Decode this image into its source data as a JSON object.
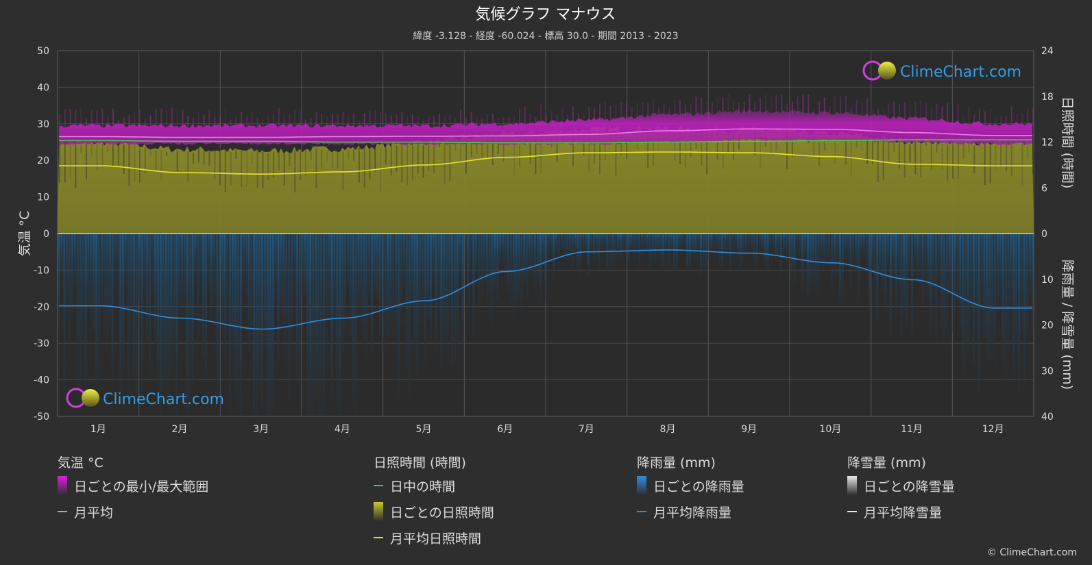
{
  "chart_data": {
    "type": "area",
    "title": "気候グラフ マナウス",
    "subtitle": "緯度 -3.128 - 経度 -60.024 - 標高 30.0 - 期間 2013 - 2023",
    "y_left_label": "気温 °C",
    "y_right_top_label": "日照時間 (時間)",
    "y_right_bottom_label": "降雨量 / 降雪量 (mm)",
    "y_left_range": [
      -50,
      50
    ],
    "y_left_ticks": [
      "50",
      "40",
      "30",
      "20",
      "10",
      "0",
      "-10",
      "-20",
      "-30",
      "-40",
      "-50"
    ],
    "y_right_top_range": [
      0,
      24
    ],
    "y_right_top_ticks": [
      "24",
      "18",
      "12",
      "6",
      "0"
    ],
    "y_right_bottom_range": [
      0,
      40
    ],
    "y_right_bottom_ticks": [
      "0",
      "10",
      "20",
      "30",
      "40"
    ],
    "months": [
      "1月",
      "2月",
      "3月",
      "4月",
      "5月",
      "6月",
      "7月",
      "8月",
      "9月",
      "10月",
      "11月",
      "12月"
    ],
    "grid": true,
    "series": [
      {
        "name": "日中の時間",
        "color": "#3fd43f",
        "values": [
          12.2,
          12.1,
          12.1,
          12.0,
          12.0,
          11.9,
          11.9,
          12.0,
          12.1,
          12.2,
          12.3,
          12.3
        ]
      },
      {
        "name": "月平均日照時間",
        "color": "#e6e62e",
        "values": [
          8.9,
          8.0,
          7.8,
          8.1,
          9.0,
          10.0,
          10.6,
          10.7,
          10.6,
          10.1,
          9.1,
          8.9
        ]
      },
      {
        "name": "月平均",
        "color": "#f07af0",
        "values": [
          26.5,
          26.3,
          26.3,
          26.5,
          26.6,
          26.7,
          27.1,
          28.1,
          28.6,
          28.5,
          27.6,
          26.8
        ]
      },
      {
        "name": "月平均降雨量",
        "color": "#2f8fe0",
        "values": [
          15.8,
          18.5,
          20.9,
          18.5,
          14.7,
          8.3,
          4.0,
          3.6,
          4.3,
          6.4,
          10.1,
          16.3
        ]
      }
    ],
    "temp_range_daily": {
      "name": "日ごとの最小/最大範囲",
      "min": [
        24.5,
        24.5,
        24.5,
        24.5,
        24.5,
        24.5,
        24.5,
        25.0,
        25.5,
        25.5,
        25.0,
        24.5
      ],
      "max": [
        29.5,
        29.5,
        29.5,
        29.5,
        29.5,
        30.0,
        31.0,
        32.5,
        33.5,
        33.0,
        31.5,
        30.0
      ]
    },
    "legend_position": "bottom"
  },
  "watermark_text": "ClimeChart.com",
  "legend": {
    "groups": [
      {
        "title": "気温 °C",
        "items": [
          {
            "label": "日ごとの最小/最大範囲",
            "swatch": "box",
            "color": "#e020e0"
          },
          {
            "label": "月平均",
            "swatch": "line",
            "color": "#f07af0"
          }
        ]
      },
      {
        "title": "日照時間 (時間)",
        "items": [
          {
            "label": "日中の時間",
            "swatch": "line",
            "color": "#3fd43f"
          },
          {
            "label": "日ごとの日照時間",
            "swatch": "box",
            "color": "#c8c832"
          },
          {
            "label": "月平均日照時間",
            "swatch": "line",
            "color": "#e6e62e"
          }
        ]
      },
      {
        "title": "降雨量 (mm)",
        "items": [
          {
            "label": "日ごとの降雨量",
            "swatch": "box",
            "color": "#2f8fe0"
          },
          {
            "label": "月平均降雨量",
            "swatch": "line",
            "color": "#2f8fe0"
          }
        ]
      },
      {
        "title": "降雪量 (mm)",
        "items": [
          {
            "label": "日ごとの降雪量",
            "swatch": "box",
            "color": "#e8e8e8"
          },
          {
            "label": "月平均降雪量",
            "swatch": "line",
            "color": "#e8e8e8"
          }
        ]
      }
    ]
  },
  "copyright": "© ClimeChart.com"
}
